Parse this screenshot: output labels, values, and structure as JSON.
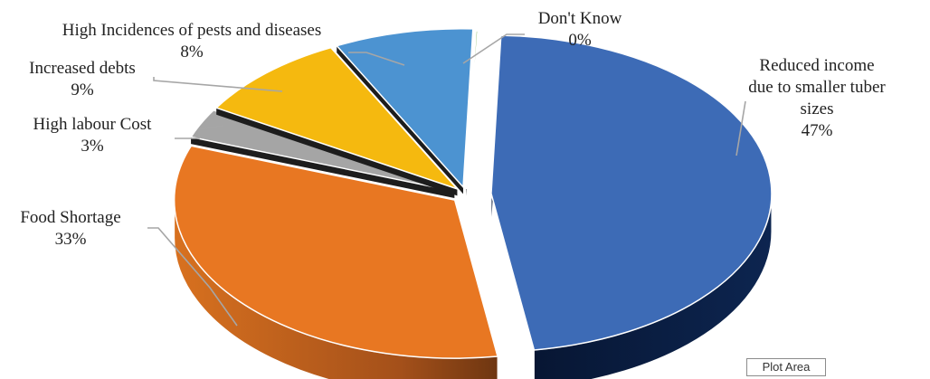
{
  "chart_data": {
    "type": "pie",
    "style": "3d-exploded",
    "slices": [
      {
        "label": [
          "Reduced income",
          "due to smaller tuber",
          "sizes"
        ],
        "value": 47,
        "value_text": "47%",
        "color": "#3D6BB6"
      },
      {
        "label": [
          "Food Shortage"
        ],
        "value": 33,
        "value_text": "33%",
        "color": "#E87722"
      },
      {
        "label": [
          "High labour Cost"
        ],
        "value": 3,
        "value_text": "3%",
        "color": "#A5A5A5"
      },
      {
        "label": [
          "Increased debts"
        ],
        "value": 9,
        "value_text": "9%",
        "color": "#F5B90F"
      },
      {
        "label": [
          "High Incidences of pests and diseases"
        ],
        "value": 8,
        "value_text": "8%",
        "color": "#4C93D1"
      },
      {
        "label": [
          "Don't Know"
        ],
        "value": 0,
        "value_text": "0%",
        "color": "#70AD47"
      }
    ]
  },
  "tooltip": "Plot Area"
}
